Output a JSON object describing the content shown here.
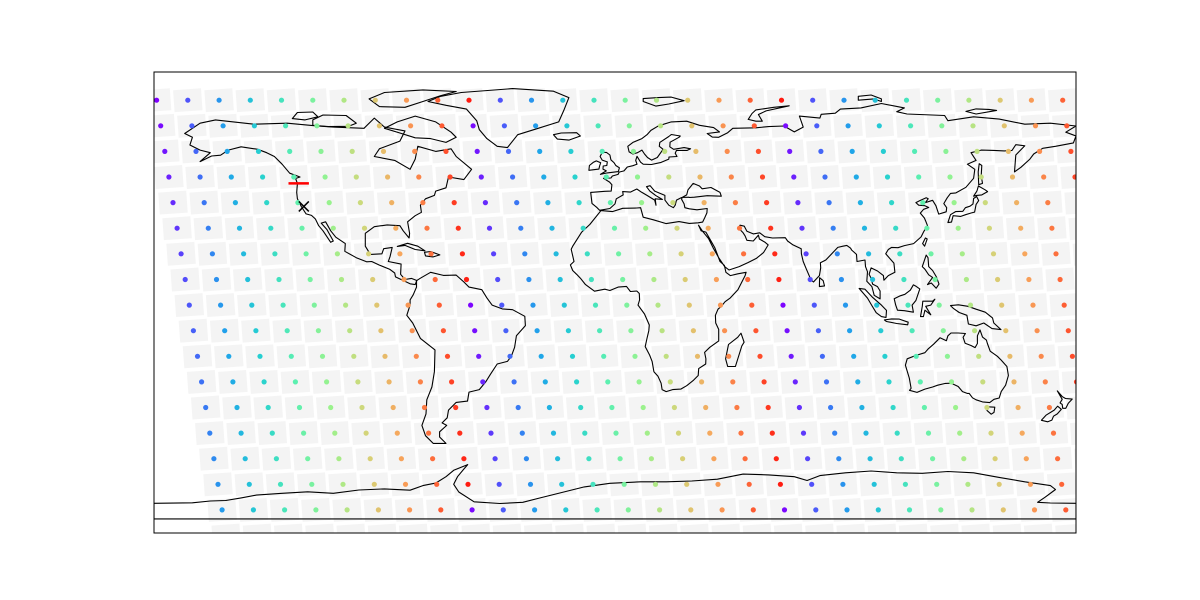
{
  "map": {
    "projection": "plate-carree",
    "extent": {
      "lon": [
        -180,
        180
      ],
      "lat": [
        -90,
        90
      ]
    },
    "frame_color": "#000000",
    "coastline_color": "#000000",
    "footprint_color": "#d9d9d9",
    "colormap": "rainbow",
    "colormap_stops": [
      "#7f00ff",
      "#4a5cf9",
      "#1fa3ea",
      "#26d0d0",
      "#5cf0b0",
      "#9af28d",
      "#d2d67a",
      "#f7a65c",
      "#fd6a3a",
      "#ff1a10"
    ],
    "grid": {
      "lon_start": -179,
      "lon_step": 12.2,
      "lon_end": 181,
      "lat_start": 79,
      "lat_step": -10,
      "lat_rows": 18,
      "row_shift_per_row": 1.6,
      "colormap_cycle_degrees": 122
    },
    "markers": {
      "cross": {
        "lon": -121.5,
        "lat": 37.5,
        "color": "#000000"
      },
      "track": {
        "lon": [
          -127.5,
          -119.5
        ],
        "lat": [
          46.5,
          46.5
        ],
        "color": "#ff0000"
      }
    }
  }
}
